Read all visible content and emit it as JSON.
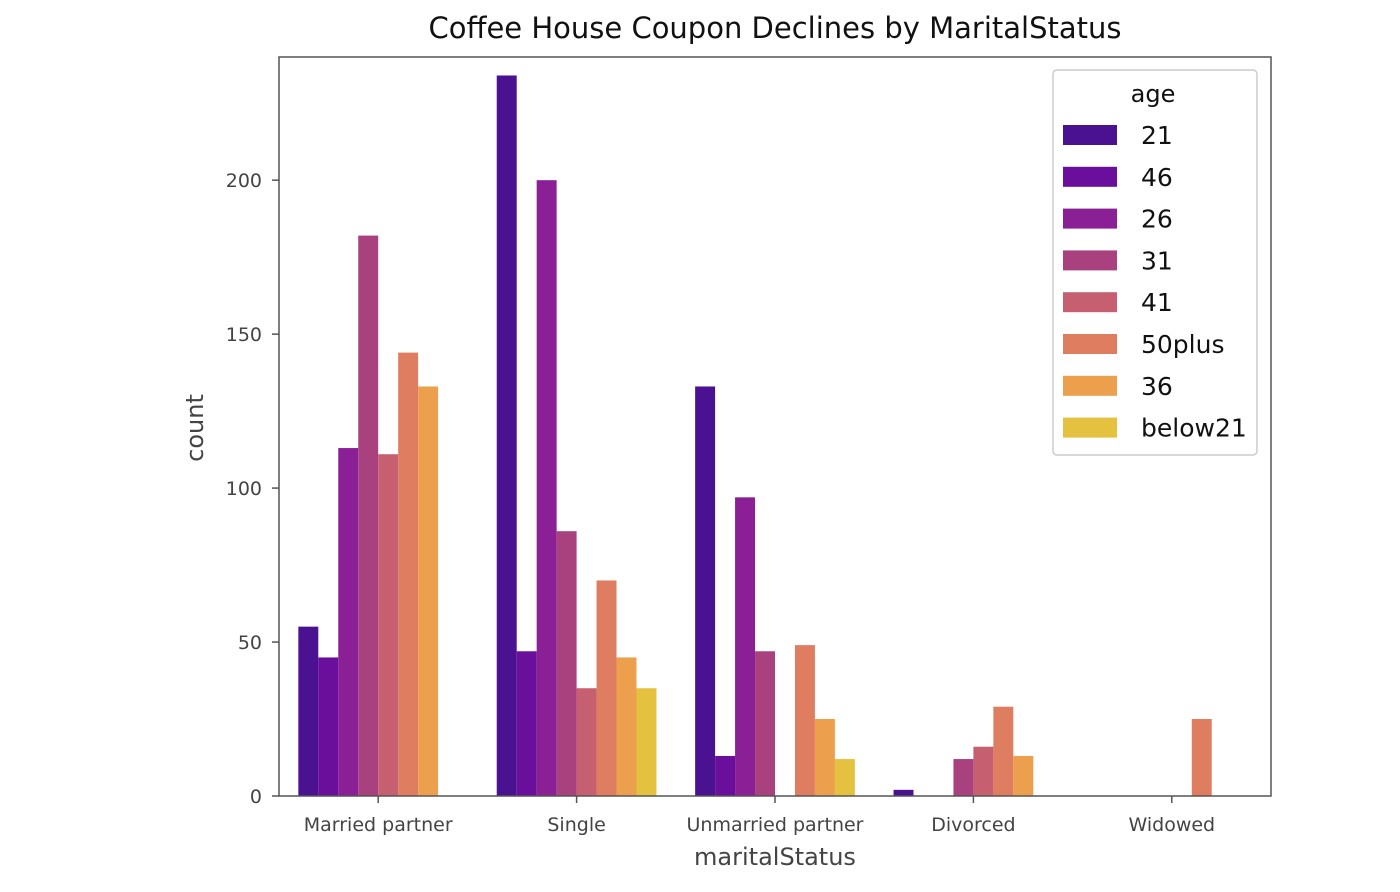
{
  "chart_data": {
    "type": "bar",
    "title": "Coffee House Coupon Declines by MaritalStatus",
    "xlabel": "maritalStatus",
    "ylabel": "count",
    "ylim": [
      0,
      240
    ],
    "yticks": [
      0,
      50,
      100,
      150,
      200
    ],
    "grid": false,
    "legend": {
      "title": "age",
      "placement": "top-right"
    },
    "categories": [
      "Married partner",
      "Single",
      "Unmarried partner",
      "Divorced",
      "Widowed"
    ],
    "series": [
      {
        "name": "21",
        "color": "#4a1190",
        "values": [
          55,
          234,
          133,
          2,
          0
        ]
      },
      {
        "name": "46",
        "color": "#6a0f9c",
        "values": [
          45,
          47,
          13,
          0,
          0
        ]
      },
      {
        "name": "26",
        "color": "#8b2096",
        "values": [
          113,
          200,
          97,
          0,
          0
        ]
      },
      {
        "name": "31",
        "color": "#a9417f",
        "values": [
          182,
          86,
          47,
          12,
          0
        ]
      },
      {
        "name": "41",
        "color": "#c66070",
        "values": [
          111,
          35,
          0,
          16,
          0
        ]
      },
      {
        "name": "50plus",
        "color": "#de7d60",
        "values": [
          144,
          70,
          49,
          29,
          25
        ]
      },
      {
        "name": "36",
        "color": "#eca04d",
        "values": [
          133,
          45,
          25,
          13,
          0
        ]
      },
      {
        "name": "below21",
        "color": "#e4c13e",
        "values": [
          0,
          35,
          12,
          0,
          0
        ]
      }
    ]
  }
}
